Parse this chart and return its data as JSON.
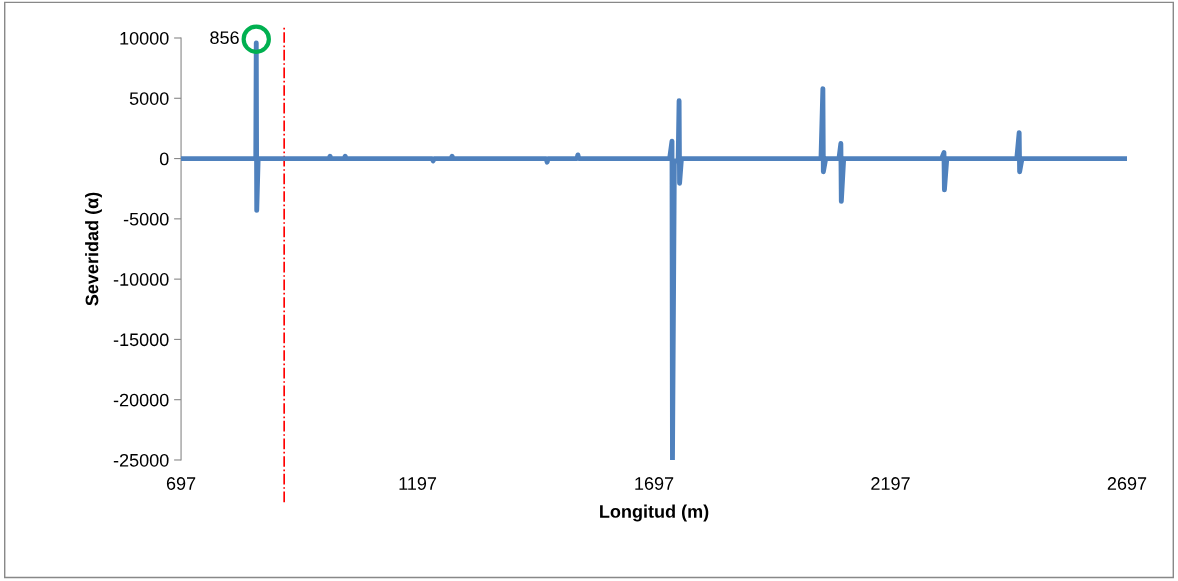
{
  "chart_data": {
    "type": "line",
    "xlabel": "Longitud (m)",
    "ylabel": "Severidad (α)",
    "xlim": [
      697,
      2697
    ],
    "xticks": [
      697,
      1197,
      1697,
      2197,
      2697
    ],
    "ylim": [
      -25000,
      10000
    ],
    "yticks": [
      -25000,
      -20000,
      -15000,
      -10000,
      -5000,
      0,
      5000,
      10000
    ],
    "grid": false,
    "legend": false,
    "marker": "none",
    "line_style": "solid",
    "series": [
      {
        "color": "#4f81bd",
        "x": [
          697,
          850,
          855,
          856,
          857,
          860,
          1010,
          1012,
          1014,
          1042,
          1044,
          1046,
          1228,
          1230,
          1232,
          1268,
          1270,
          1272,
          1469,
          1471,
          1473,
          1534,
          1536,
          1538,
          1730,
          1735,
          1736,
          1740,
          1748,
          1750,
          1751,
          1755,
          2050,
          2054,
          2055,
          2060,
          2088,
          2092,
          2093,
          2098,
          2305,
          2310,
          2311,
          2316,
          2464,
          2469,
          2470,
          2475,
          2697
        ],
        "values": [
          0,
          0,
          0,
          9600,
          -4300,
          0,
          0,
          200,
          0,
          0,
          200,
          0,
          0,
          -200,
          0,
          0,
          200,
          0,
          0,
          -300,
          0,
          0,
          300,
          0,
          0,
          1450,
          -25000,
          -200,
          -200,
          4800,
          -2050,
          0,
          0,
          5800,
          -1100,
          0,
          0,
          1250,
          -3550,
          0,
          0,
          500,
          -2600,
          0,
          0,
          2150,
          -1100,
          0,
          0
        ]
      },
      {
        "type": "scatter",
        "color": "#00b050",
        "marker": "circle",
        "x": [
          856
        ],
        "values": [
          9900
        ]
      }
    ],
    "annotations": [
      {
        "text": "856",
        "x": 856,
        "y": 9900
      }
    ],
    "ref_lines": [
      {
        "axis": "x",
        "value": 915,
        "color": "#ff0000",
        "line_style": "dashdot"
      }
    ]
  }
}
